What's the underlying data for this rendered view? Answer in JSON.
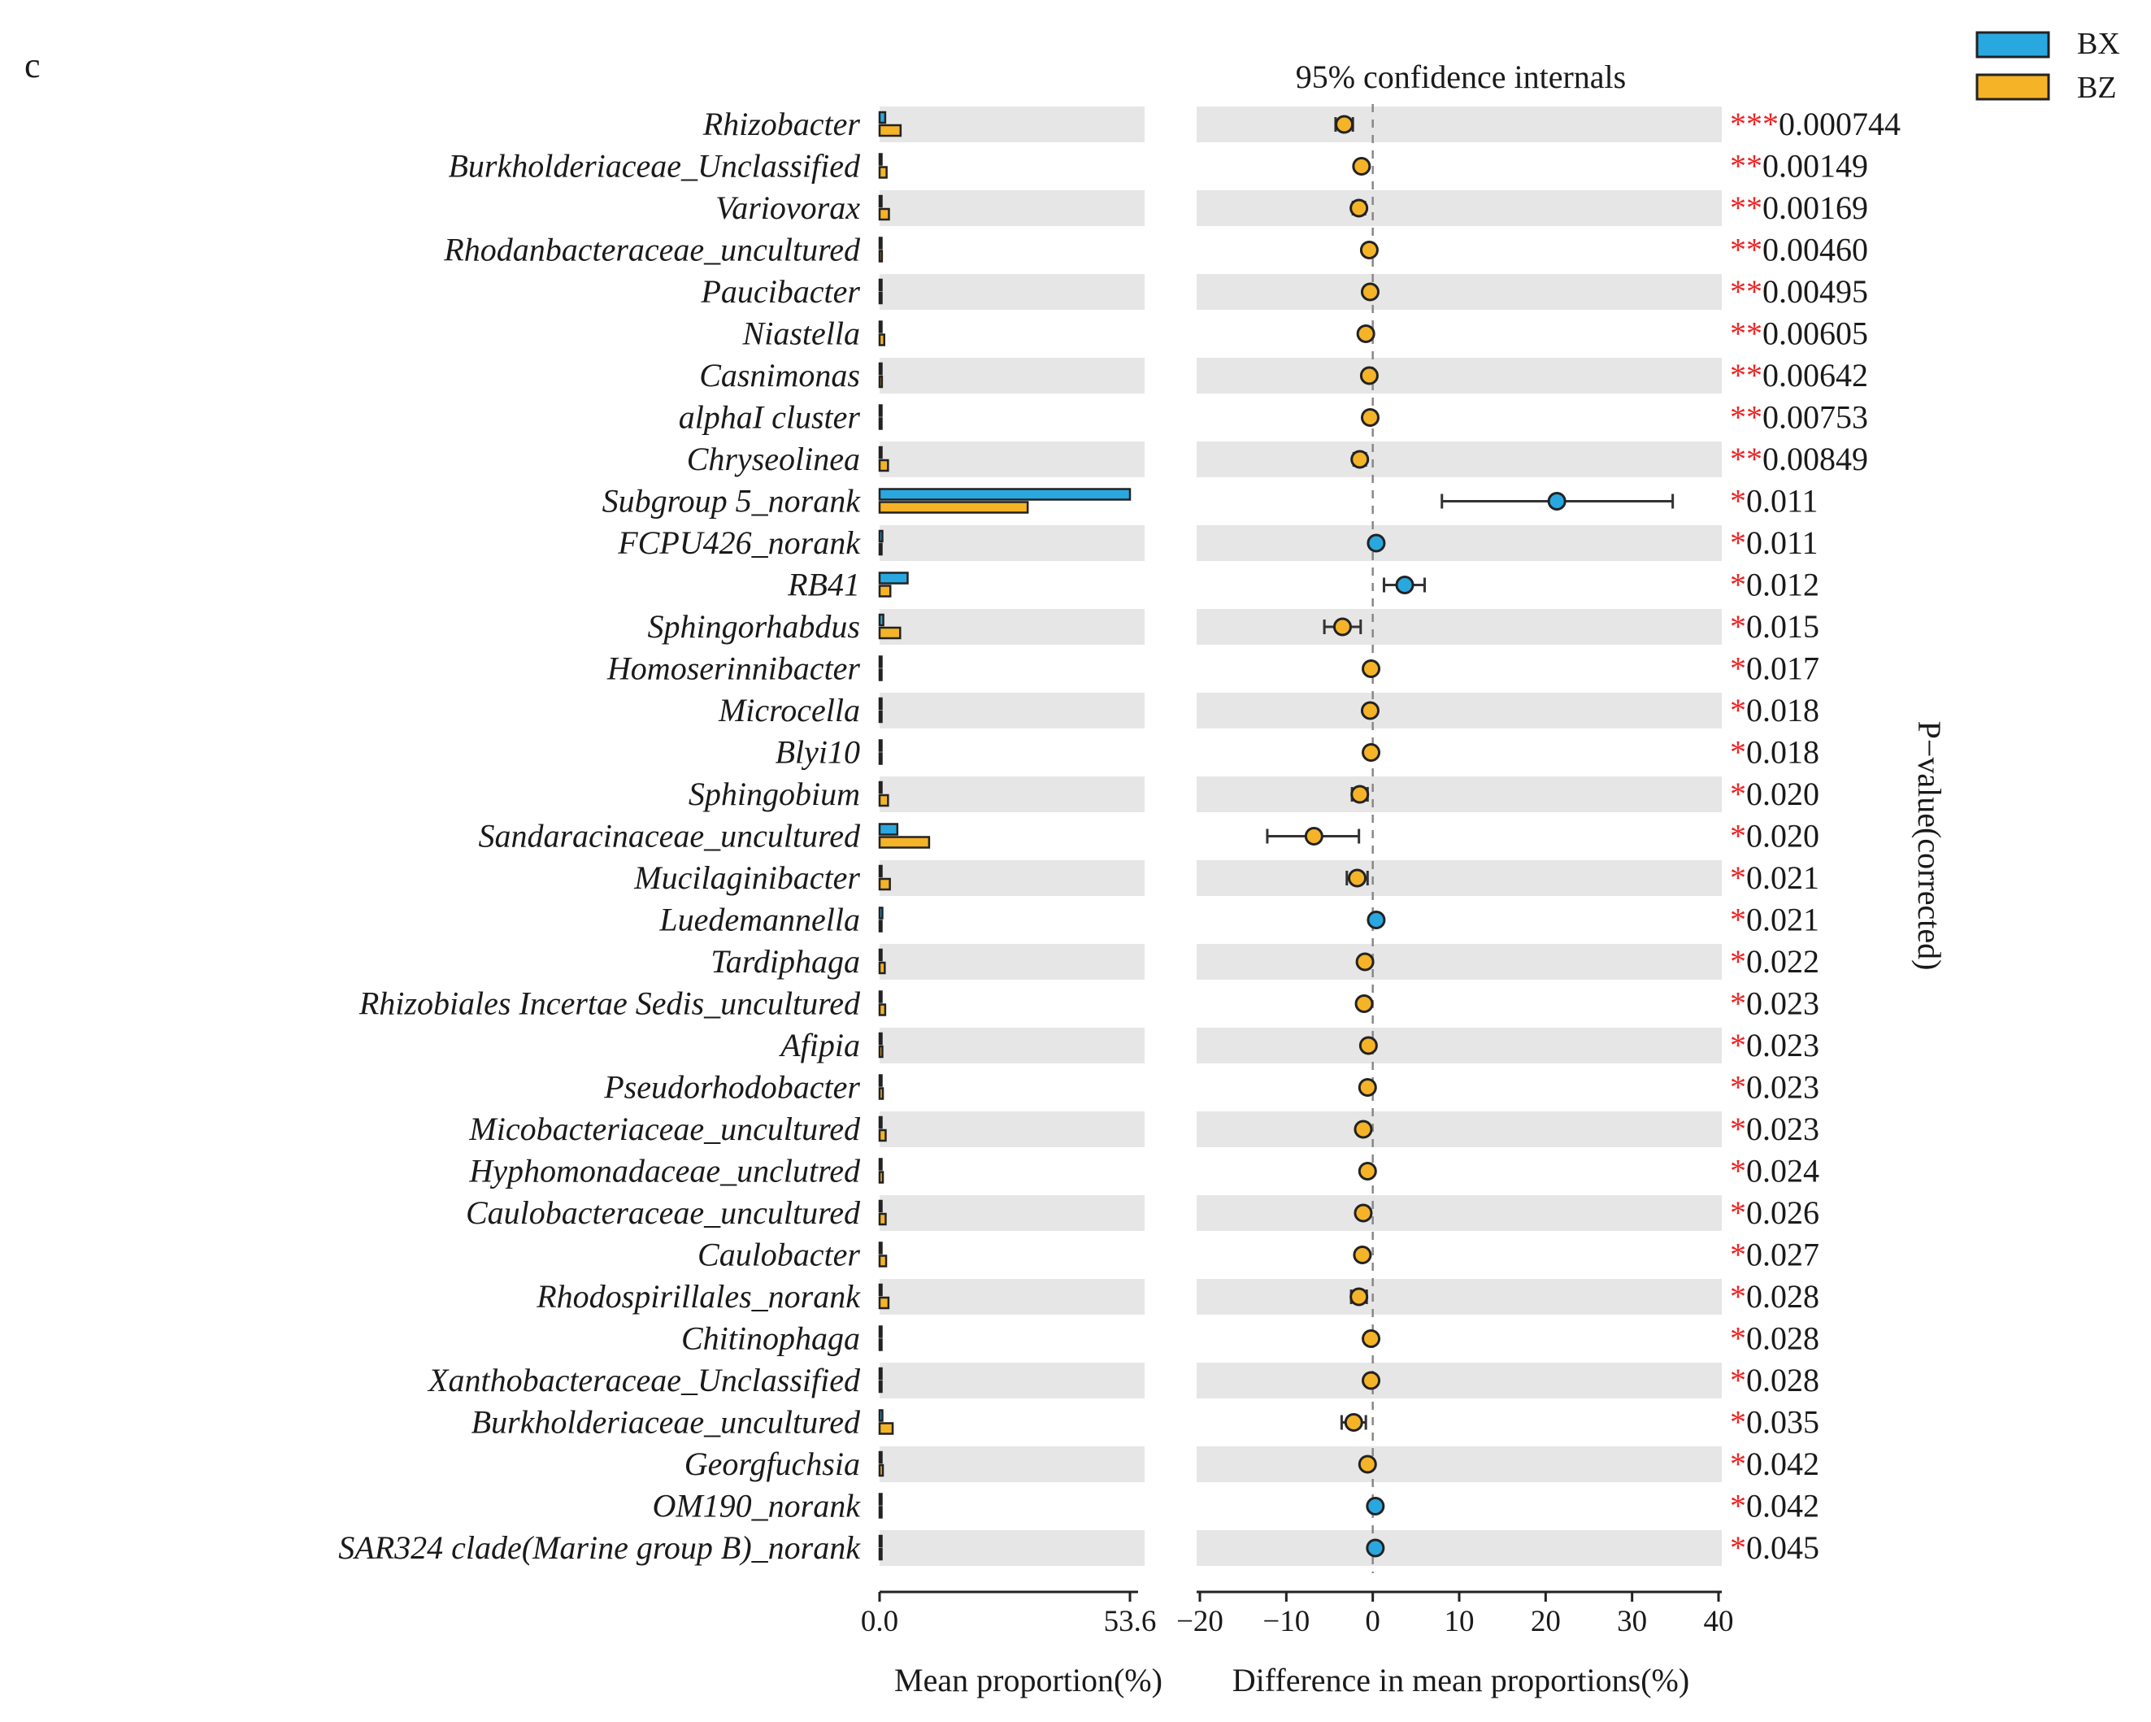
{
  "chart_data": {
    "type": "extended_error_bar",
    "panel_label": "c",
    "ci_title": "95% confidence internals",
    "legend": [
      {
        "name": "BX",
        "color": "#29a8e0"
      },
      {
        "name": "BZ",
        "color": "#f5b327"
      }
    ],
    "bar_xlabel": "Mean proportion(%)",
    "bar_xlim": [
      0,
      53.6
    ],
    "bar_xticks": [
      "0.0",
      "53.6"
    ],
    "diff_xlabel": "Difference in mean proportions(%)",
    "diff_xlim": [
      -20,
      40
    ],
    "diff_xticks": [
      "−20",
      "−10",
      "0",
      "10",
      "20",
      "30",
      "40"
    ],
    "pvalue_label": "P−value(corrected)",
    "rows": [
      {
        "taxon": "Rhizobacter",
        "bx": 1.2,
        "bz": 4.5,
        "diff": -3.3,
        "lo": -4.3,
        "hi": -2.3,
        "stars": "***",
        "p": "0.000744"
      },
      {
        "taxon": "Burkholderiaceae_Unclassified",
        "bx": 0.2,
        "bz": 1.5,
        "diff": -1.3,
        "lo": -1.8,
        "hi": -0.8,
        "stars": "**",
        "p": "0.00149"
      },
      {
        "taxon": "Variovorax",
        "bx": 0.4,
        "bz": 2.0,
        "diff": -1.6,
        "lo": -2.3,
        "hi": -0.9,
        "stars": "**",
        "p": "0.00169"
      },
      {
        "taxon": "Rhodanbacteraceae_uncultured",
        "bx": 0.1,
        "bz": 0.5,
        "diff": -0.4,
        "lo": -0.6,
        "hi": -0.2,
        "stars": "**",
        "p": "0.00460"
      },
      {
        "taxon": "Paucibacter",
        "bx": 0.1,
        "bz": 0.4,
        "diff": -0.3,
        "lo": -0.5,
        "hi": -0.1,
        "stars": "**",
        "p": "0.00495"
      },
      {
        "taxon": "Niastella",
        "bx": 0.2,
        "bz": 1.0,
        "diff": -0.8,
        "lo": -1.1,
        "hi": -0.5,
        "stars": "**",
        "p": "0.00605"
      },
      {
        "taxon": "Casnimonas",
        "bx": 0.1,
        "bz": 0.5,
        "diff": -0.4,
        "lo": -0.6,
        "hi": -0.2,
        "stars": "**",
        "p": "0.00642"
      },
      {
        "taxon": "alphaI cluster",
        "bx": 0.1,
        "bz": 0.4,
        "diff": -0.3,
        "lo": -0.5,
        "hi": -0.1,
        "stars": "**",
        "p": "0.00753"
      },
      {
        "taxon": "Chryseolinea",
        "bx": 0.3,
        "bz": 1.8,
        "diff": -1.5,
        "lo": -2.2,
        "hi": -0.8,
        "stars": "**",
        "p": "0.00849"
      },
      {
        "taxon": "Subgroup 5_norank",
        "bx": 53.6,
        "bz": 31.7,
        "diff": 21.3,
        "lo": 8.0,
        "hi": 34.7,
        "stars": "*",
        "p": "0.011"
      },
      {
        "taxon": "FCPU426_norank",
        "bx": 0.6,
        "bz": 0.2,
        "diff": 0.4,
        "lo": 0.2,
        "hi": 0.6,
        "stars": "*",
        "p": "0.011"
      },
      {
        "taxon": "RB41",
        "bx": 6.0,
        "bz": 2.3,
        "diff": 3.7,
        "lo": 1.3,
        "hi": 6.0,
        "stars": "*",
        "p": "0.012"
      },
      {
        "taxon": "Sphingorhabdus",
        "bx": 0.8,
        "bz": 4.4,
        "diff": -3.5,
        "lo": -5.6,
        "hi": -1.4,
        "stars": "*",
        "p": "0.015"
      },
      {
        "taxon": "Homoserinnibacter",
        "bx": 0.05,
        "bz": 0.3,
        "diff": -0.2,
        "lo": -0.4,
        "hi": 0.0,
        "stars": "*",
        "p": "0.017"
      },
      {
        "taxon": "Microcella",
        "bx": 0.05,
        "bz": 0.4,
        "diff": -0.3,
        "lo": -0.5,
        "hi": -0.1,
        "stars": "*",
        "p": "0.018"
      },
      {
        "taxon": "Blyi10",
        "bx": 0.05,
        "bz": 0.3,
        "diff": -0.2,
        "lo": -0.4,
        "hi": 0.0,
        "stars": "*",
        "p": "0.018"
      },
      {
        "taxon": "Sphingobium",
        "bx": 0.3,
        "bz": 1.8,
        "diff": -1.5,
        "lo": -2.4,
        "hi": -0.6,
        "stars": "*",
        "p": "0.020"
      },
      {
        "taxon": "Sandaracinaceae_uncultured",
        "bx": 3.8,
        "bz": 10.6,
        "diff": -6.8,
        "lo": -12.2,
        "hi": -1.6,
        "stars": "*",
        "p": "0.020"
      },
      {
        "taxon": "Mucilaginibacter",
        "bx": 0.4,
        "bz": 2.2,
        "diff": -1.8,
        "lo": -3.0,
        "hi": -0.6,
        "stars": "*",
        "p": "0.021"
      },
      {
        "taxon": "Luedemannella",
        "bx": 0.6,
        "bz": 0.2,
        "diff": 0.4,
        "lo": 0.2,
        "hi": 0.6,
        "stars": "*",
        "p": "0.021"
      },
      {
        "taxon": "Tardiphaga",
        "bx": 0.2,
        "bz": 1.1,
        "diff": -0.9,
        "lo": -1.3,
        "hi": -0.5,
        "stars": "*",
        "p": "0.022"
      },
      {
        "taxon": "Rhizobiales Incertae Sedis_uncultured",
        "bx": 0.2,
        "bz": 1.2,
        "diff": -1.0,
        "lo": -1.4,
        "hi": -0.6,
        "stars": "*",
        "p": "0.023"
      },
      {
        "taxon": "Afipia",
        "bx": 0.1,
        "bz": 0.6,
        "diff": -0.5,
        "lo": -0.7,
        "hi": -0.3,
        "stars": "*",
        "p": "0.023"
      },
      {
        "taxon": "Pseudorhodobacter",
        "bx": 0.1,
        "bz": 0.7,
        "diff": -0.6,
        "lo": -0.8,
        "hi": -0.4,
        "stars": "*",
        "p": "0.023"
      },
      {
        "taxon": "Micobacteriaceae_uncultured",
        "bx": 0.2,
        "bz": 1.3,
        "diff": -1.1,
        "lo": -1.6,
        "hi": -0.6,
        "stars": "*",
        "p": "0.023"
      },
      {
        "taxon": "Hyphomonadaceae_unclutred",
        "bx": 0.1,
        "bz": 0.7,
        "diff": -0.6,
        "lo": -0.8,
        "hi": -0.4,
        "stars": "*",
        "p": "0.024"
      },
      {
        "taxon": "Caulobacteraceae_uncultured",
        "bx": 0.2,
        "bz": 1.3,
        "diff": -1.1,
        "lo": -1.6,
        "hi": -0.6,
        "stars": "*",
        "p": "0.026"
      },
      {
        "taxon": "Caulobacter",
        "bx": 0.2,
        "bz": 1.4,
        "diff": -1.2,
        "lo": -1.7,
        "hi": -0.7,
        "stars": "*",
        "p": "0.027"
      },
      {
        "taxon": "Rhodospirillales_norank",
        "bx": 0.3,
        "bz": 1.9,
        "diff": -1.6,
        "lo": -2.5,
        "hi": -0.7,
        "stars": "*",
        "p": "0.028"
      },
      {
        "taxon": "Chitinophaga",
        "bx": 0.05,
        "bz": 0.3,
        "diff": -0.2,
        "lo": -0.4,
        "hi": 0.0,
        "stars": "*",
        "p": "0.028"
      },
      {
        "taxon": "Xanthobacteraceae_Unclassified",
        "bx": 0.05,
        "bz": 0.3,
        "diff": -0.2,
        "lo": -0.4,
        "hi": 0.0,
        "stars": "*",
        "p": "0.028"
      },
      {
        "taxon": "Burkholderiaceae_uncultured",
        "bx": 0.6,
        "bz": 2.8,
        "diff": -2.2,
        "lo": -3.6,
        "hi": -0.8,
        "stars": "*",
        "p": "0.035"
      },
      {
        "taxon": "Georgfuchsia",
        "bx": 0.1,
        "bz": 0.7,
        "diff": -0.6,
        "lo": -0.8,
        "hi": -0.4,
        "stars": "*",
        "p": "0.042"
      },
      {
        "taxon": "OM190_norank",
        "bx": 0.4,
        "bz": 0.1,
        "diff": 0.3,
        "lo": 0.1,
        "hi": 0.5,
        "stars": "*",
        "p": "0.042"
      },
      {
        "taxon": "SAR324 clade(Marine group B)_norank",
        "bx": 0.4,
        "bz": 0.1,
        "diff": 0.3,
        "lo": 0.1,
        "hi": 0.5,
        "stars": "*",
        "p": "0.045"
      }
    ]
  }
}
